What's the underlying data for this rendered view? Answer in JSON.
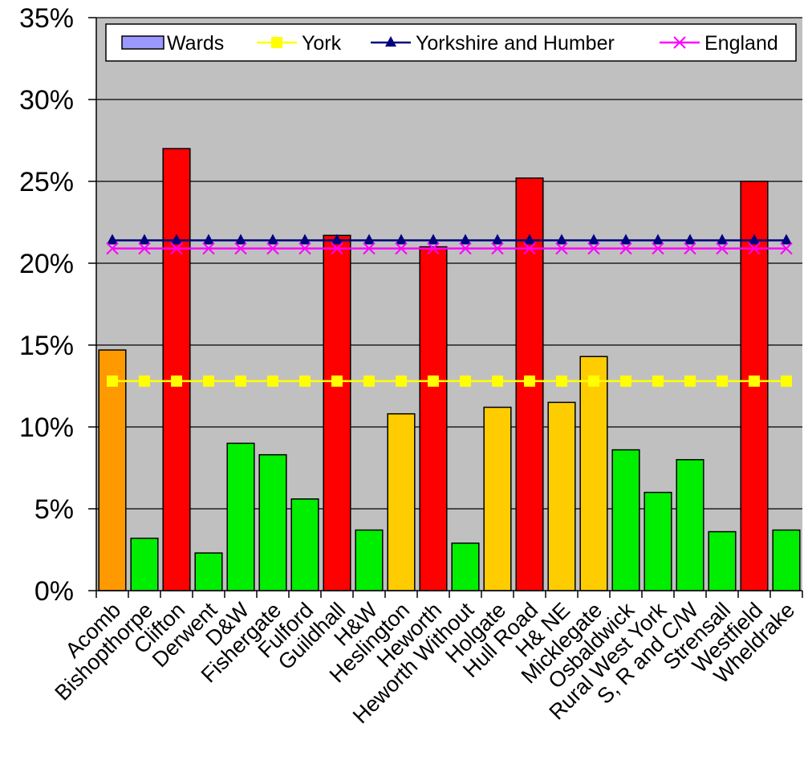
{
  "chart_data": {
    "type": "bar",
    "categories": [
      "Acomb",
      "Bishopthorpe",
      "Clifton",
      "Derwent",
      "D&W",
      "Fishergate",
      "Fulford",
      "Guildhall",
      "H&W",
      "Heslington",
      "Heworth",
      "Heworth Without",
      "Holgate",
      "Hull Road",
      "H& NE",
      "Micklegate",
      "Osbaldwick",
      "Rural West York",
      "S, R and C/W",
      "Strensall",
      "Westfield",
      "Wheldrake"
    ],
    "bar_series": {
      "name": "Wards",
      "values": [
        14.7,
        3.2,
        27.0,
        2.3,
        9.0,
        8.3,
        5.6,
        21.7,
        3.7,
        10.8,
        21.0,
        2.9,
        11.2,
        25.2,
        11.5,
        14.3,
        8.6,
        6.0,
        8.0,
        3.6,
        25.0,
        3.7
      ],
      "bar_colors": [
        "#FF9900",
        "#00EE00",
        "#FF0000",
        "#00EE00",
        "#00EE00",
        "#00EE00",
        "#00EE00",
        "#FF0000",
        "#00EE00",
        "#FFCC00",
        "#FF0000",
        "#00EE00",
        "#FFCC00",
        "#FF0000",
        "#FFCC00",
        "#FFCC00",
        "#00EE00",
        "#00EE00",
        "#00EE00",
        "#00EE00",
        "#FF0000",
        "#00EE00"
      ],
      "legend_color": "#9999FF"
    },
    "line_series": [
      {
        "name": "York",
        "value": 12.8,
        "color": "#FFFF00",
        "marker": "square"
      },
      {
        "name": "Yorkshire and Humber",
        "value": 21.4,
        "color": "#000080",
        "marker": "triangle"
      },
      {
        "name": "England",
        "value": 20.9,
        "color": "#FF00FF",
        "marker": "x"
      }
    ],
    "y_ticks": [
      "0%",
      "5%",
      "10%",
      "15%",
      "20%",
      "25%",
      "30%",
      "35%"
    ],
    "y_tick_values": [
      0,
      5,
      10,
      15,
      20,
      25,
      30,
      35
    ],
    "ylim": [
      0,
      35
    ],
    "plot_background": "#C0C0C0",
    "grid": true,
    "legend_position": "top"
  }
}
